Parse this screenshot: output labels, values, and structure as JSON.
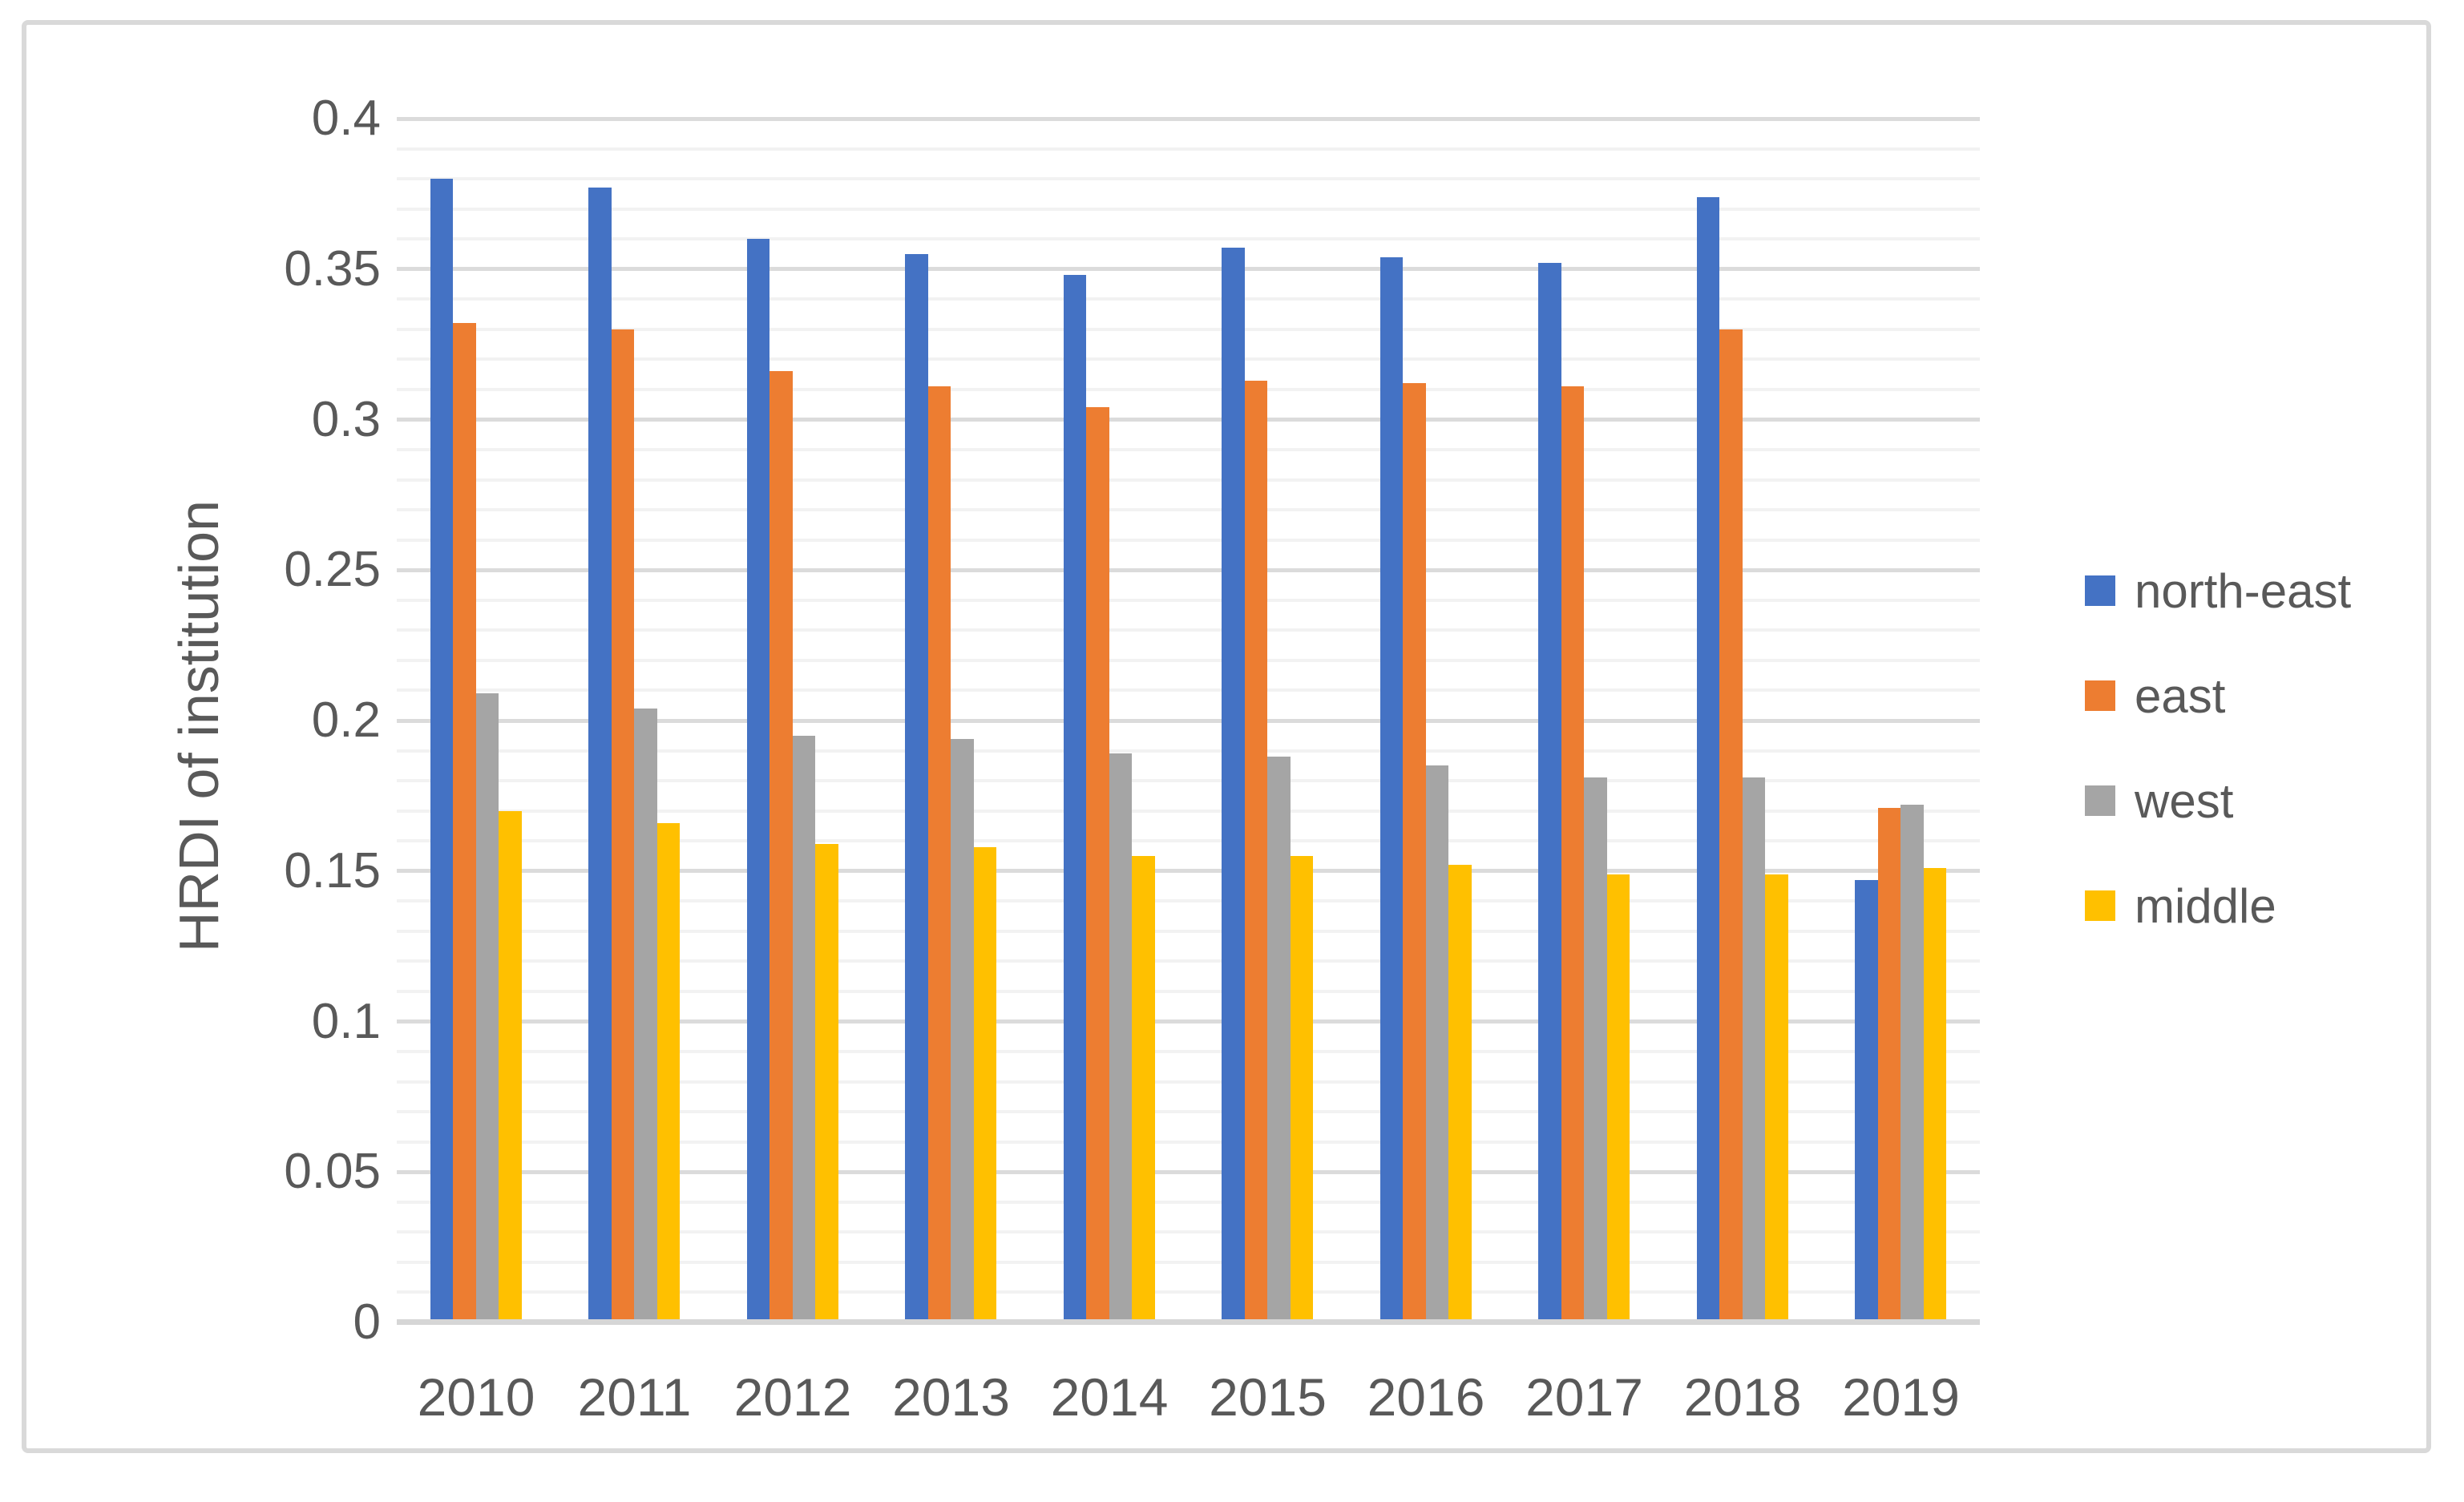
{
  "chart_data": {
    "type": "bar",
    "title": "",
    "xlabel": "",
    "ylabel": "HRDI of institution",
    "categories": [
      "2010",
      "2011",
      "2012",
      "2013",
      "2014",
      "2015",
      "2016",
      "2017",
      "2018",
      "2019"
    ],
    "series": [
      {
        "name": "north-east",
        "color": "#4472C4",
        "values": [
          0.38,
          0.377,
          0.36,
          0.355,
          0.348,
          0.357,
          0.354,
          0.352,
          0.374,
          0.147
        ]
      },
      {
        "name": "east",
        "color": "#ED7D31",
        "values": [
          0.332,
          0.33,
          0.316,
          0.311,
          0.304,
          0.313,
          0.312,
          0.311,
          0.33,
          0.171
        ]
      },
      {
        "name": "west",
        "color": "#A5A5A5",
        "values": [
          0.209,
          0.204,
          0.195,
          0.194,
          0.189,
          0.188,
          0.185,
          0.181,
          0.181,
          0.172
        ]
      },
      {
        "name": "middle",
        "color": "#FFC000",
        "values": [
          0.17,
          0.166,
          0.159,
          0.158,
          0.155,
          0.155,
          0.152,
          0.149,
          0.149,
          0.151
        ]
      }
    ],
    "ylim": [
      0,
      0.4
    ],
    "y_major_tick_labels": [
      "0",
      "0.05",
      "0.1",
      "0.15",
      "0.2",
      "0.25",
      "0.3",
      "0.35",
      "0.4"
    ],
    "y_major_step": 0.05,
    "y_minor_step": 0.01,
    "grid": "horizontal minor and major gridlines on",
    "legend_position": "right"
  },
  "styles": {
    "frame_border_color": "#D9D9D9",
    "axis_text_color": "#595959",
    "gridline_minor_color": "#F2F2F2",
    "gridline_major_color": "#DBDBDB",
    "axis_line_color": "#D6D6D6",
    "background_color": "#FFFFFF"
  }
}
